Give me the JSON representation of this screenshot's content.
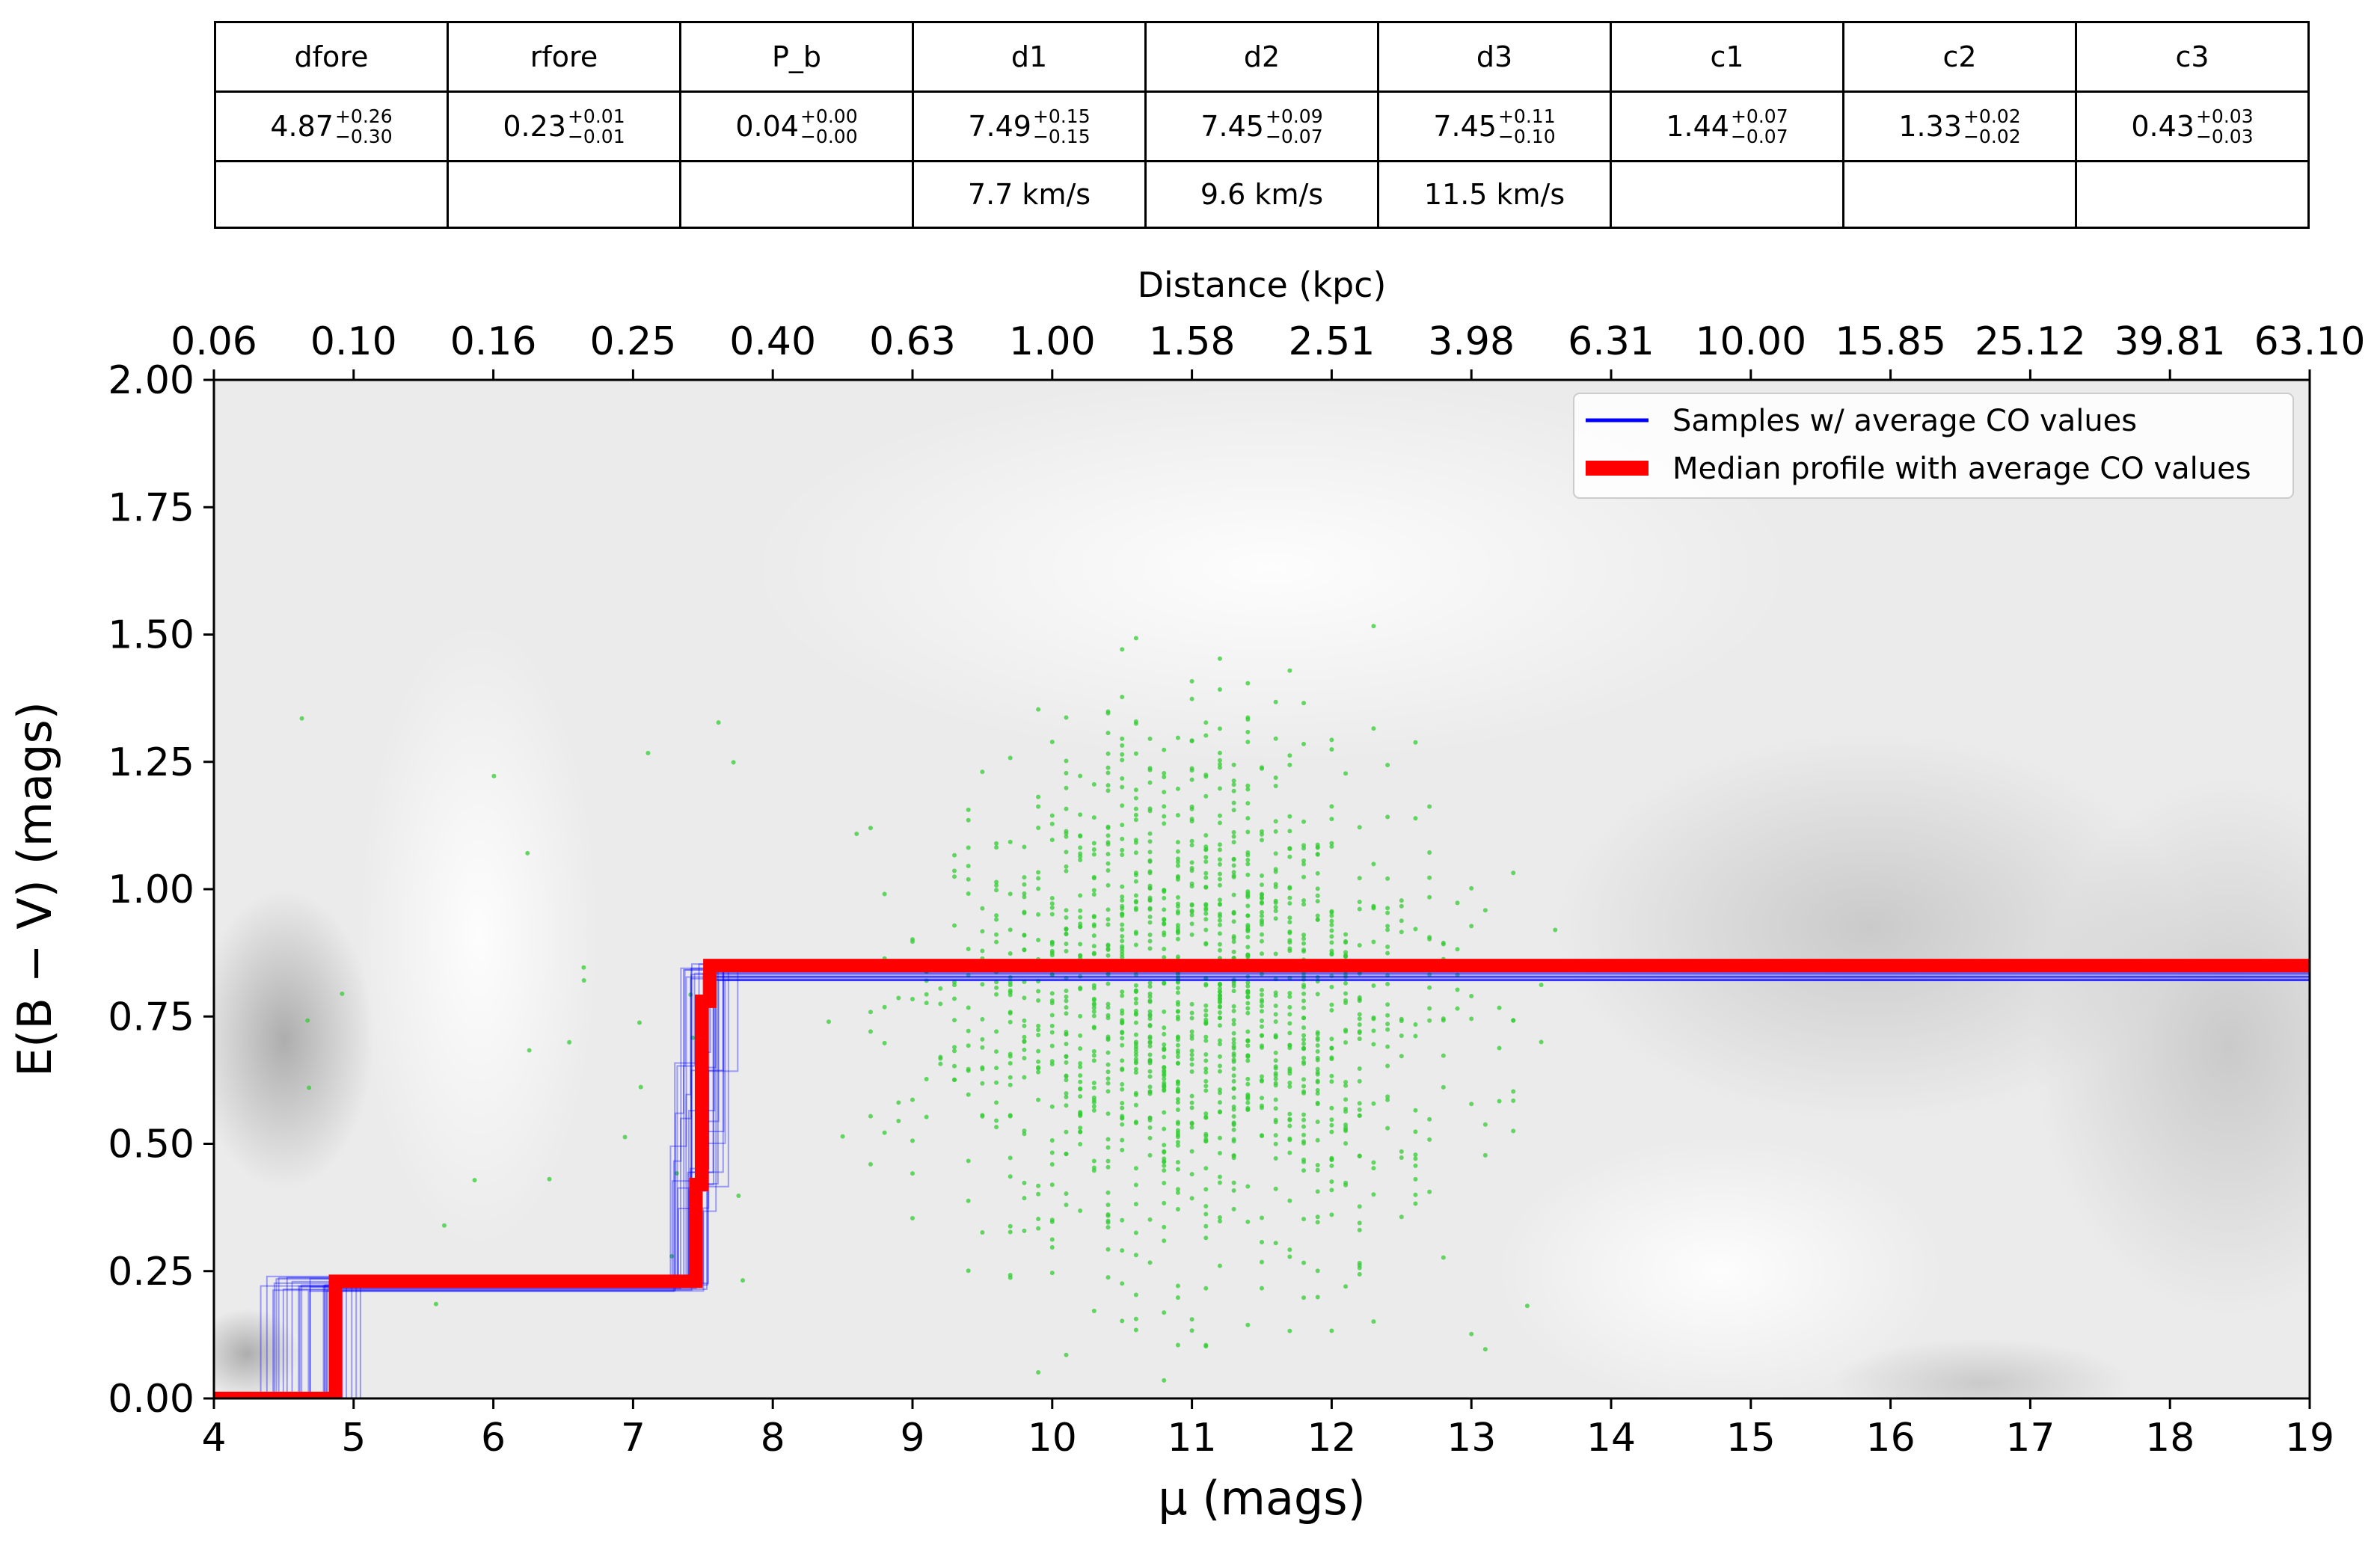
{
  "table": {
    "headers": [
      "dfore",
      "rfore",
      "P_b",
      "d1",
      "d2",
      "d3",
      "c1",
      "c2",
      "c3"
    ],
    "values": [
      {
        "value": "4.87",
        "plus": "+0.26",
        "minus": "−0.30"
      },
      {
        "value": "0.23",
        "plus": "+0.01",
        "minus": "−0.01"
      },
      {
        "value": "0.04",
        "plus": "+0.00",
        "minus": "−0.00"
      },
      {
        "value": "7.49",
        "plus": "+0.15",
        "minus": "−0.15"
      },
      {
        "value": "7.45",
        "plus": "+0.09",
        "minus": "−0.07"
      },
      {
        "value": "7.45",
        "plus": "+0.11",
        "minus": "−0.10"
      },
      {
        "value": "1.44",
        "plus": "+0.07",
        "minus": "−0.07"
      },
      {
        "value": "1.33",
        "plus": "+0.02",
        "minus": "−0.02"
      },
      {
        "value": "0.43",
        "plus": "+0.03",
        "minus": "−0.03"
      }
    ],
    "velocities": [
      "",
      "",
      "",
      "7.7 km/s",
      "9.6 km/s",
      "11.5 km/s",
      "",
      "",
      ""
    ]
  },
  "chart_data": {
    "type": "line",
    "xlabel": "μ (mags)",
    "ylabel": "E(B − V) (mags)",
    "top_xlabel": "Distance (kpc)",
    "xlim": [
      4,
      19
    ],
    "ylim": [
      0,
      2
    ],
    "xticks": [
      "4",
      "5",
      "6",
      "7",
      "8",
      "9",
      "10",
      "11",
      "12",
      "13",
      "14",
      "15",
      "16",
      "17",
      "18",
      "19"
    ],
    "yticks": [
      "0.00",
      "0.25",
      "0.50",
      "0.75",
      "1.00",
      "1.25",
      "1.50",
      "1.75",
      "2.00"
    ],
    "top_ticks": [
      "0.06",
      "0.10",
      "0.16",
      "0.25",
      "0.40",
      "0.63",
      "1.00",
      "1.58",
      "2.51",
      "3.98",
      "6.31",
      "10.00",
      "15.85",
      "25.12",
      "39.81",
      "63.10"
    ],
    "legend": {
      "position": "top-right",
      "items": [
        {
          "label": "Samples  w/ average CO values",
          "color": "#0000ff"
        },
        {
          "label": "Median profile with average CO values",
          "color": "#ff0000"
        }
      ]
    },
    "colors": {
      "samples": "#0000ff",
      "median": "#ff0000",
      "stars": "#33cc33",
      "background": "#f0f0f0"
    },
    "series": [
      {
        "name": "Median profile with average CO values",
        "x": [
          4.0,
          4.87,
          4.87,
          7.45,
          7.45,
          7.49,
          7.49,
          7.55,
          7.55,
          19.0
        ],
        "y": [
          0.0,
          0.0,
          0.23,
          0.23,
          0.42,
          0.42,
          0.78,
          0.78,
          0.85,
          0.85
        ]
      },
      {
        "name": "Samples  w/ average CO values",
        "x": [
          4.0,
          4.57,
          4.57,
          7.3,
          7.3,
          7.6,
          7.6,
          19.0
        ],
        "y": [
          0.0,
          0.0,
          0.23,
          0.23,
          0.55,
          0.55,
          0.85,
          0.85
        ]
      }
    ]
  }
}
